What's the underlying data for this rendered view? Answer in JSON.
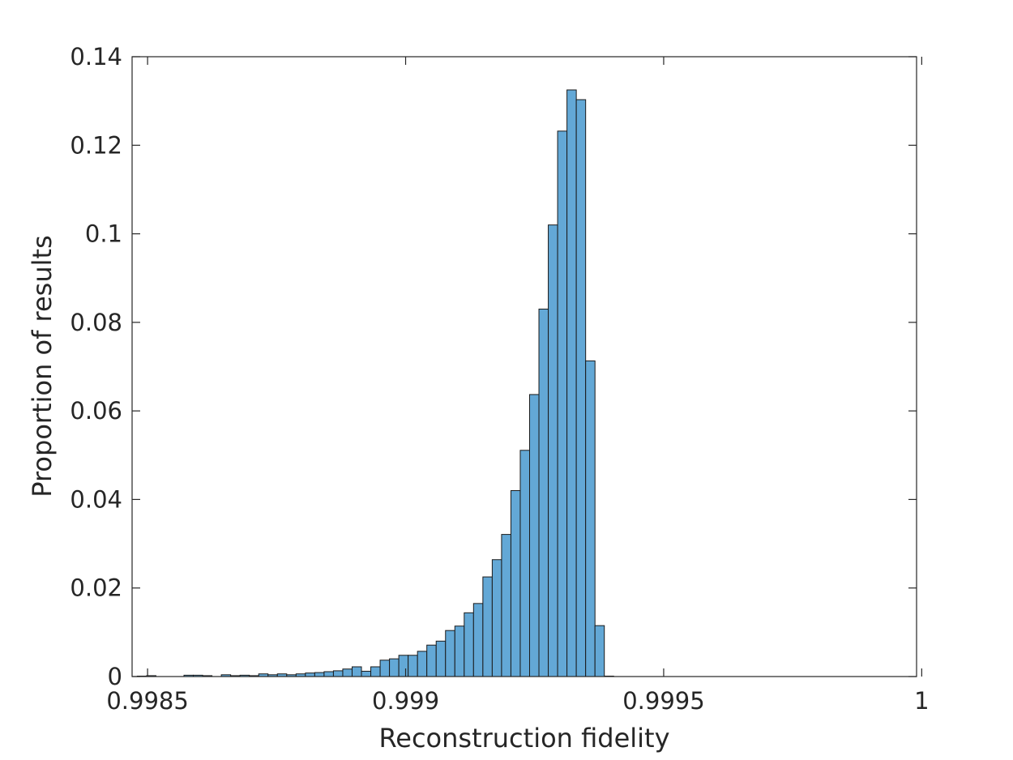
{
  "chart_data": {
    "type": "bar",
    "xlabel": "Reconstruction fidelity",
    "ylabel": "Proportion of results",
    "xlim": [
      0.99847,
      0.99999
    ],
    "ylim": [
      0,
      0.14
    ],
    "x_ticks": [
      0.9985,
      0.999,
      0.9995,
      1
    ],
    "x_tick_labels": [
      "0.9985",
      "0.999",
      "0.9995",
      "1"
    ],
    "y_ticks": [
      0,
      0.02,
      0.04,
      0.06,
      0.08,
      0.1,
      0.12,
      0.14
    ],
    "y_tick_labels": [
      "0",
      "0.02",
      "0.04",
      "0.06",
      "0.08",
      "0.1",
      "0.12",
      "0.14"
    ],
    "grid": false,
    "bin_start": 0.99848,
    "bin_width": 1.81e-05,
    "values": [
      0.0001,
      0.0002,
      0,
      0,
      0,
      0.0003,
      0.0003,
      0.0002,
      0,
      0.0004,
      0.0002,
      0.0003,
      0.0002,
      0.0006,
      0.0004,
      0.0006,
      0.0004,
      0.0006,
      0.0008,
      0.0009,
      0.0011,
      0.0013,
      0.0017,
      0.0022,
      0.0012,
      0.0022,
      0.0037,
      0.004,
      0.0048,
      0.0048,
      0.0057,
      0.0071,
      0.008,
      0.0104,
      0.0114,
      0.0144,
      0.0165,
      0.0225,
      0.0264,
      0.0321,
      0.042,
      0.0511,
      0.0637,
      0.083,
      0.102,
      0.1232,
      0.1325,
      0.1303,
      0.0713,
      0.0115,
      0.0001
    ]
  }
}
